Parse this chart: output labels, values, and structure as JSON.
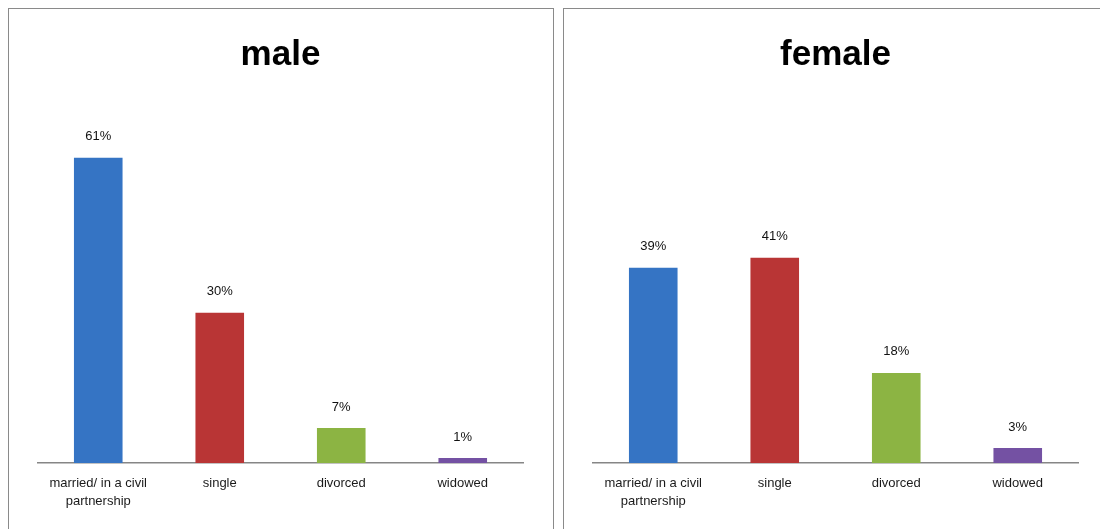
{
  "chart_data": [
    {
      "type": "bar",
      "title": "male",
      "categories": [
        "married/ in a civil partnership",
        "single",
        "divorced",
        "widowed"
      ],
      "values": [
        61,
        30,
        7,
        1
      ],
      "colors": [
        "#3574c4",
        "#b93535",
        "#8cb443",
        "#7451a3"
      ],
      "value_labels": [
        "61%",
        "30%",
        "7%",
        "1%"
      ],
      "tick_labels": "x"
    },
    {
      "type": "bar",
      "title": "female",
      "categories": [
        "married/ in a civil partnership",
        "single",
        "divorced",
        "widowed"
      ],
      "values": [
        39,
        41,
        18,
        3
      ],
      "colors": [
        "#3574c4",
        "#b93535",
        "#8cb443",
        "#7451a3"
      ],
      "value_labels": [
        "39%",
        "41%",
        "18%",
        "3%"
      ],
      "tick_labels": "x"
    }
  ]
}
